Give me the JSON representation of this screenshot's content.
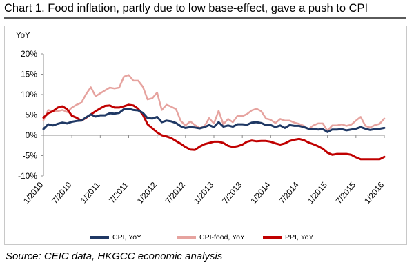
{
  "chart_data": {
    "type": "line",
    "title": "Chart 1. Food inflation, partly due to low base-effect, gave a push to CPI",
    "ylabel": "YoY",
    "xlabel": "",
    "ylim": [
      -10,
      20
    ],
    "yticks": [
      "20%",
      "15%",
      "10%",
      "5%",
      "0%",
      "-5%",
      "-10%"
    ],
    "xticks": [
      "1/2010",
      "7/2010",
      "1/2011",
      "7/2011",
      "1/2012",
      "7/2012",
      "1/2013",
      "7/2013",
      "1/2014",
      "7/2014",
      "1/2015",
      "7/2015",
      "1/2016"
    ],
    "x_start": "1/2010",
    "x_end": "2/2016",
    "grid": false,
    "legend": "bottom",
    "series": [
      {
        "name": "CPI, YoY",
        "color": "#1f3864",
        "values": [
          1.5,
          2.7,
          2.4,
          2.8,
          3.1,
          2.9,
          3.3,
          3.5,
          3.6,
          4.4,
          5.1,
          4.6,
          4.9,
          4.9,
          5.4,
          5.3,
          5.5,
          6.4,
          6.5,
          6.2,
          6.1,
          5.5,
          4.2,
          4.1,
          4.5,
          3.2,
          3.6,
          3.4,
          3.0,
          2.2,
          1.8,
          2.0,
          1.9,
          1.7,
          2.0,
          2.5,
          2.0,
          3.2,
          2.1,
          2.4,
          2.1,
          2.7,
          2.7,
          2.6,
          3.1,
          3.2,
          3.0,
          2.5,
          2.5,
          2.0,
          2.4,
          1.8,
          2.5,
          2.3,
          2.3,
          2.0,
          1.6,
          1.6,
          1.4,
          1.5,
          0.8,
          1.4,
          1.4,
          1.5,
          1.2,
          1.4,
          1.6,
          2.0,
          1.6,
          1.3,
          1.5,
          1.6,
          1.8
        ]
      },
      {
        "name": "CPI-food, YoY",
        "color": "#e6a39f",
        "values": [
          3.7,
          6.2,
          5.9,
          5.9,
          6.2,
          5.7,
          6.8,
          7.5,
          8.0,
          10.1,
          11.8,
          9.6,
          10.3,
          11.0,
          11.7,
          11.5,
          11.7,
          14.4,
          14.8,
          13.4,
          13.4,
          11.9,
          8.8,
          9.1,
          10.5,
          6.2,
          7.5,
          7.0,
          6.4,
          3.5,
          2.4,
          3.4,
          2.5,
          1.8,
          2.2,
          4.2,
          2.9,
          6.0,
          2.7,
          4.0,
          3.2,
          4.8,
          4.7,
          5.2,
          6.1,
          6.5,
          5.9,
          4.1,
          3.8,
          3.0,
          4.0,
          3.6,
          3.6,
          3.1,
          2.8,
          2.3,
          1.5,
          2.4,
          2.9,
          2.9,
          1.1,
          2.4,
          2.4,
          2.7,
          2.3,
          2.6,
          3.6,
          4.5,
          2.3,
          1.9,
          2.5,
          2.8,
          4.1
        ]
      },
      {
        "name": "PPI, YoY",
        "color": "#c00000",
        "values": [
          4.3,
          5.4,
          5.9,
          6.8,
          7.1,
          6.4,
          4.8,
          4.3,
          3.6,
          4.3,
          5.1,
          5.9,
          6.6,
          7.2,
          7.3,
          6.8,
          6.8,
          7.1,
          7.5,
          7.3,
          6.5,
          5.0,
          2.7,
          1.7,
          0.7,
          0.0,
          -0.3,
          -0.7,
          -1.4,
          -2.1,
          -2.9,
          -3.5,
          -3.6,
          -2.8,
          -2.2,
          -1.9,
          -1.6,
          -1.6,
          -1.9,
          -2.6,
          -2.9,
          -2.7,
          -2.3,
          -1.6,
          -1.3,
          -1.5,
          -1.4,
          -1.4,
          -1.6,
          -2.0,
          -2.3,
          -2.0,
          -1.4,
          -1.1,
          -0.9,
          -1.2,
          -1.8,
          -2.2,
          -2.7,
          -3.3,
          -4.3,
          -4.8,
          -4.6,
          -4.6,
          -4.6,
          -4.8,
          -5.4,
          -5.9,
          -5.9,
          -5.9,
          -5.9,
          -5.9,
          -5.3
        ]
      }
    ]
  },
  "source": "Source: CEIC data, HKGCC economic analysis"
}
